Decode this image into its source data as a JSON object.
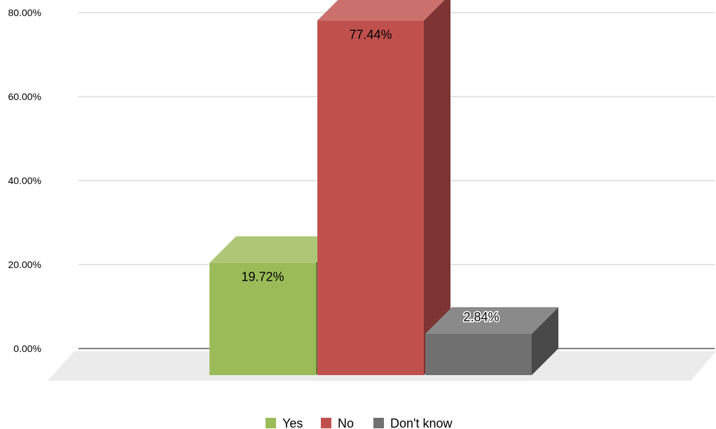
{
  "chart_data": {
    "type": "bar",
    "categories": [
      "Yes",
      "No",
      "Don't know"
    ],
    "values": [
      19.72,
      77.44,
      2.84
    ],
    "data_labels": [
      "19.72%",
      "77.44%",
      "2.84%"
    ],
    "ylim": [
      0,
      80
    ],
    "yticks": [
      0,
      20,
      40,
      60,
      80
    ],
    "ytick_labels": [
      "0.00%",
      "20.00%",
      "40.00%",
      "60.00%",
      "80.00%"
    ],
    "title": "",
    "xlabel": "",
    "ylabel": "",
    "grid": true,
    "legend_position": "bottom",
    "style": "3d-column",
    "colors": [
      "#9bbb59",
      "#c0504d",
      "#707070"
    ]
  }
}
